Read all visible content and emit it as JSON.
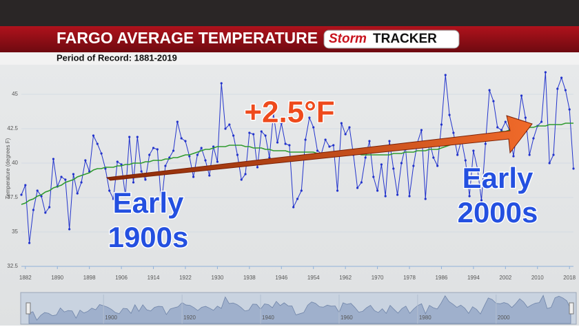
{
  "chart_data": {
    "type": "line",
    "title": "FARGO AVERAGE TEMPERATURE",
    "logo": [
      "Storm",
      "TRACKER"
    ],
    "subtitle": "Period of Record: 1881-2019",
    "y_label": "Temperature (degrees F)",
    "annotations": [
      "+2.5°F",
      "Early",
      "1900s",
      "Early",
      "2000s"
    ],
    "x": [
      1881,
      1882,
      1883,
      1884,
      1885,
      1886,
      1887,
      1888,
      1889,
      1890,
      1891,
      1892,
      1893,
      1894,
      1895,
      1896,
      1897,
      1898,
      1899,
      1900,
      1901,
      1902,
      1903,
      1904,
      1905,
      1906,
      1907,
      1908,
      1909,
      1910,
      1911,
      1912,
      1913,
      1914,
      1915,
      1916,
      1917,
      1918,
      1919,
      1920,
      1921,
      1922,
      1923,
      1924,
      1925,
      1926,
      1927,
      1928,
      1929,
      1930,
      1931,
      1932,
      1933,
      1934,
      1935,
      1936,
      1937,
      1938,
      1939,
      1940,
      1941,
      1942,
      1943,
      1944,
      1945,
      1946,
      1947,
      1948,
      1949,
      1950,
      1951,
      1952,
      1953,
      1954,
      1955,
      1956,
      1957,
      1958,
      1959,
      1960,
      1961,
      1962,
      1963,
      1964,
      1965,
      1966,
      1967,
      1968,
      1969,
      1970,
      1971,
      1972,
      1973,
      1974,
      1975,
      1976,
      1977,
      1978,
      1979,
      1980,
      1981,
      1982,
      1983,
      1984,
      1985,
      1986,
      1987,
      1988,
      1989,
      1990,
      1991,
      1992,
      1993,
      1994,
      1995,
      1996,
      1997,
      1998,
      1999,
      2000,
      2001,
      2002,
      2003,
      2004,
      2005,
      2006,
      2007,
      2008,
      2009,
      2010,
      2011,
      2012,
      2013,
      2014,
      2015,
      2016,
      2017,
      2018,
      2019
    ],
    "series": [
      {
        "color": "#2233cc",
        "values": [
          37.7,
          38.4,
          34.2,
          36.6,
          38.0,
          37.6,
          36.4,
          36.8,
          40.3,
          38.3,
          39.0,
          38.8,
          35.2,
          39.2,
          37.8,
          38.6,
          40.2,
          39.4,
          42.0,
          41.4,
          40.7,
          39.6,
          38.0,
          37.4,
          40.1,
          39.9,
          37.6,
          41.9,
          38.6,
          41.9,
          39.4,
          38.8,
          40.6,
          41.1,
          41.0,
          37.0,
          39.8,
          40.4,
          40.9,
          43.0,
          41.8,
          41.6,
          40.5,
          39.0,
          40.6,
          41.1,
          40.2,
          39.1,
          41.2,
          40.1,
          45.8,
          42.5,
          42.8,
          42.0,
          40.6,
          38.8,
          39.2,
          42.2,
          42.1,
          39.7,
          42.3,
          42.0,
          40.4,
          43.6,
          41.5,
          42.9,
          41.4,
          41.3,
          36.8,
          37.4,
          38.0,
          41.7,
          43.3,
          42.6,
          40.9,
          40.7,
          41.7,
          41.2,
          41.3,
          38.0,
          42.9,
          42.1,
          42.6,
          40.6,
          38.2,
          38.6,
          40.4,
          41.6,
          39.0,
          38.0,
          39.9,
          37.6,
          41.6,
          39.6,
          37.7,
          40.0,
          41.2,
          37.6,
          39.8,
          41.5,
          42.4,
          37.4,
          41.6,
          40.4,
          39.8,
          42.8,
          46.4,
          43.5,
          42.2,
          40.6,
          41.7,
          40.2,
          37.6,
          40.9,
          39.6,
          37.3,
          41.4,
          45.3,
          44.5,
          42.6,
          42.4,
          43.0,
          42.4,
          40.5,
          42.5,
          44.9,
          43.3,
          40.6,
          41.8,
          42.7,
          43.0,
          46.6,
          40.0,
          40.6,
          45.4,
          46.2,
          45.3,
          43.9,
          39.6
        ]
      },
      {
        "color": "#2e9a2e",
        "values": [
          37.0,
          37.1,
          37.3,
          37.4,
          37.6,
          37.7,
          37.9,
          38.0,
          38.2,
          38.3,
          38.4,
          38.6,
          38.7,
          38.8,
          39.0,
          39.1,
          39.2,
          39.3,
          39.5,
          39.6,
          39.6,
          39.7,
          39.7,
          39.7,
          39.8,
          39.8,
          39.9,
          39.9,
          40.0,
          40.0,
          40.0,
          40.1,
          40.1,
          40.2,
          40.2,
          40.2,
          40.3,
          40.3,
          40.4,
          40.4,
          40.5,
          40.6,
          40.6,
          40.7,
          40.8,
          40.9,
          41.0,
          41.0,
          41.1,
          41.2,
          41.2,
          41.2,
          41.3,
          41.3,
          41.3,
          41.3,
          41.2,
          41.2,
          41.1,
          41.1,
          41.1,
          41.0,
          41.0,
          40.9,
          40.9,
          40.9,
          40.9,
          40.8,
          40.8,
          40.8,
          40.8,
          40.8,
          40.8,
          40.8,
          40.7,
          40.7,
          40.7,
          40.7,
          40.7,
          40.7,
          40.7,
          40.7,
          40.7,
          40.7,
          40.7,
          40.6,
          40.6,
          40.6,
          40.6,
          40.6,
          40.6,
          40.6,
          40.6,
          40.7,
          40.7,
          40.7,
          40.8,
          40.8,
          40.8,
          40.9,
          40.9,
          40.9,
          41.0,
          41.0,
          41.0,
          41.1,
          41.2,
          41.3,
          41.4,
          41.4,
          41.5,
          41.6,
          41.7,
          41.7,
          41.8,
          41.9,
          42.0,
          42.0,
          42.1,
          42.2,
          42.3,
          42.3,
          42.4,
          42.5,
          42.5,
          42.5,
          42.6,
          42.6,
          42.6,
          42.7,
          42.7,
          42.7,
          42.8,
          42.8,
          42.8,
          42.8,
          42.9,
          42.9,
          42.9
        ]
      }
    ],
    "xlim": [
      1881,
      2019
    ],
    "xticks": [
      1882,
      1890,
      1898,
      1906,
      1914,
      1922,
      1930,
      1938,
      1946,
      1954,
      1962,
      1970,
      1978,
      1986,
      1994,
      2002,
      2010,
      2018
    ],
    "ylim": [
      32.5,
      47
    ],
    "yticks": [
      32.5,
      35,
      37.5,
      40,
      42.5,
      45
    ],
    "grid": true,
    "navigator_xticks": [
      1900,
      1920,
      1940,
      1960,
      1980,
      2000
    ]
  }
}
